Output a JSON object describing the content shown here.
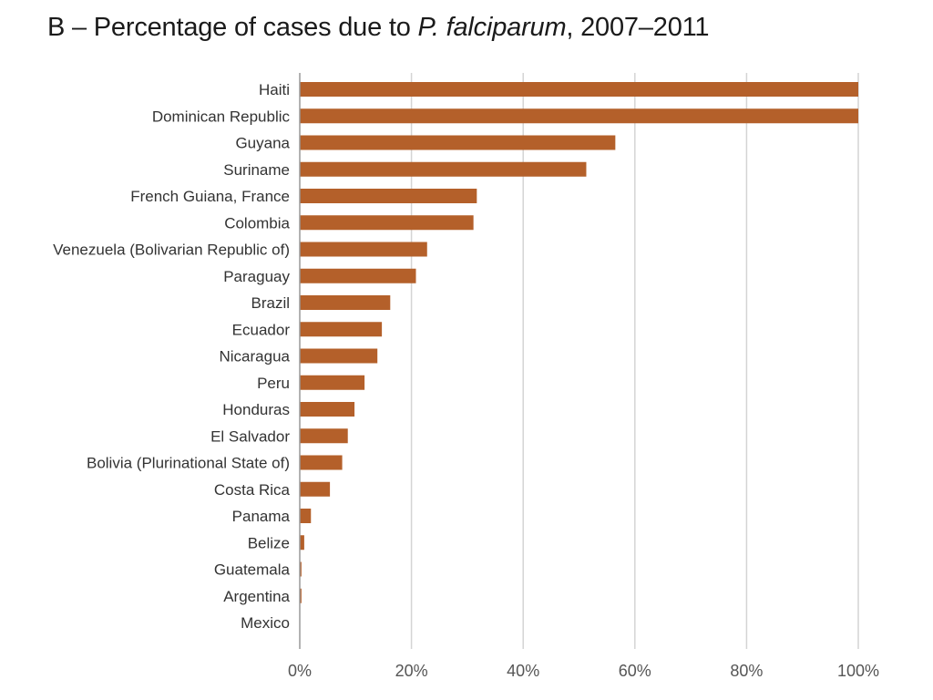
{
  "title": {
    "prefix": "B – Percentage of cases due to ",
    "species": "P. falciparum",
    "suffix": ", 2007–2011"
  },
  "chart_data": {
    "type": "bar",
    "orientation": "horizontal",
    "categories": [
      "Haiti",
      "Dominican Republic",
      "Guyana",
      "Suriname",
      "French Guiana, France",
      "Colombia",
      "Venezuela (Bolivarian Republic of)",
      "Paraguay",
      "Brazil",
      "Ecuador",
      "Nicaragua",
      "Peru",
      "Honduras",
      "El Salvador",
      "Bolivia (Plurinational State of)",
      "Costa Rica",
      "Panama",
      "Belize",
      "Guatemala",
      "Argentina",
      "Mexico"
    ],
    "values": [
      100,
      100,
      56.5,
      51.3,
      31.7,
      31.1,
      22.8,
      20.8,
      16.2,
      14.7,
      13.9,
      11.6,
      9.8,
      8.6,
      7.6,
      5.4,
      2.0,
      0.8,
      0.3,
      0.3,
      0.0
    ],
    "xlim": [
      0,
      100
    ],
    "xticks": [
      0,
      20,
      40,
      60,
      80,
      100
    ],
    "xtick_labels": [
      "0%",
      "20%",
      "40%",
      "60%",
      "80%",
      "100%"
    ],
    "grid": "vertical",
    "legend": "none",
    "bar_color": "#b4602a"
  }
}
